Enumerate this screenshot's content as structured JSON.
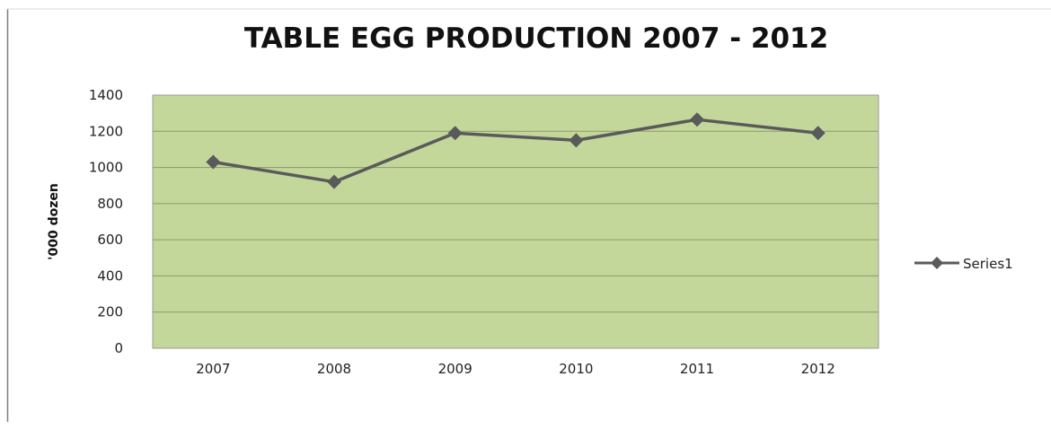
{
  "chart_data": {
    "type": "line",
    "title": "TABLE EGG PRODUCTION 2007 - 2012",
    "xlabel": "",
    "ylabel": "'000 dozen",
    "categories": [
      "2007",
      "2008",
      "2009",
      "2010",
      "2011",
      "2012"
    ],
    "series": [
      {
        "name": "Series1",
        "values": [
          1030,
          920,
          1190,
          1150,
          1265,
          1190
        ]
      }
    ],
    "ylim": [
      0,
      1400
    ],
    "yticks": [
      "0",
      "200",
      "400",
      "600",
      "800",
      "1000",
      "1200",
      "1400"
    ],
    "grid": true,
    "legend_position": "right",
    "colors": {
      "plot_background": "#c4d79b",
      "line": "#5a5a5a",
      "gridline": "#8a9a6a",
      "frame_line": "#7f7f7f"
    },
    "marker": "diamond-icon"
  }
}
